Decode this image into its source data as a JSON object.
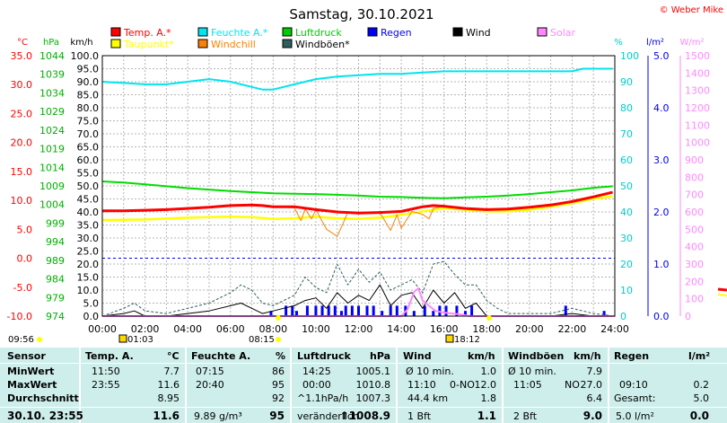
{
  "title": "Samstag, 30.10.2021",
  "copyright": "© Weber Mike",
  "legend": [
    {
      "label": "Temp. A.*",
      "color": "#ff0000"
    },
    {
      "label": "Feuchte A.*",
      "color": "#00e5ee"
    },
    {
      "label": "Luftdruck",
      "color": "#00cc00"
    },
    {
      "label": "Regen",
      "color": "#0000ff"
    },
    {
      "label": "Wind",
      "color": "#000000"
    },
    {
      "label": "Solar",
      "color": "#ff88ff"
    },
    {
      "label": "Taupunkt*",
      "color": "#ffff00"
    },
    {
      "label": "Windchill",
      "color": "#ff8000"
    },
    {
      "label": "Windböen*",
      "color": "#2f5f5f"
    }
  ],
  "axis_units": {
    "temp": "°C",
    "pressure": "hPa",
    "wind": "km/h",
    "humidity": "%",
    "rain": "l/m²",
    "solar": "W/m²"
  },
  "axis_ticks": {
    "temp": [
      "35.0",
      "30.0",
      "25.0",
      "20.0",
      "15.0",
      "10.0",
      "5.0",
      "0.0",
      "-5.0",
      "-10.0"
    ],
    "pressure": [
      "1044",
      "1039",
      "1034",
      "1029",
      "1024",
      "1019",
      "1014",
      "1009",
      "1004",
      "999",
      "994",
      "989",
      "984",
      "979",
      "974"
    ],
    "wind": [
      "100.0",
      "95.0",
      "90.0",
      "85.0",
      "80.0",
      "75.0",
      "70.0",
      "65.0",
      "60.0",
      "55.0",
      "50.0",
      "45.0",
      "40.0",
      "35.0",
      "30.0",
      "25.0",
      "20.0",
      "15.0",
      "10.0",
      "5.0",
      "0.0"
    ],
    "humidity": [
      "100",
      "90",
      "80",
      "70",
      "60",
      "50",
      "40",
      "30",
      "20",
      "10",
      "0"
    ],
    "rain": [
      "5.0",
      "4.0",
      "3.0",
      "2.0",
      "1.0",
      "0.0"
    ],
    "solar": [
      "1500",
      "1400",
      "1300",
      "1200",
      "1100",
      "1000",
      "900",
      "800",
      "700",
      "600",
      "500",
      "400",
      "300",
      "200",
      "100",
      "0"
    ],
    "time": [
      "00:00",
      "02:00",
      "04:00",
      "06:00",
      "08:00",
      "10:00",
      "12:00",
      "14:00",
      "16:00",
      "18:00",
      "20:00",
      "22:00",
      "24:00"
    ]
  },
  "sun_markers": {
    "sunrise": "08:15",
    "sunset": "18:12",
    "moonset": "01:03",
    "moon_extra": "09:56"
  },
  "chart_data": {
    "type": "line",
    "x_unit": "hours",
    "xlim": [
      0,
      24
    ],
    "series": [
      {
        "name": "Temp. A.*",
        "axis": "temp",
        "unit": "°C",
        "x": [
          0,
          1,
          2,
          3,
          4,
          5,
          6,
          7,
          7.5,
          8,
          9,
          10,
          11,
          12,
          13,
          14,
          15,
          15.5,
          16,
          17,
          18,
          19,
          20,
          21,
          22,
          23,
          23.9
        ],
        "y": [
          8.2,
          8.2,
          8.3,
          8.4,
          8.6,
          8.8,
          9.1,
          9.2,
          9.1,
          8.9,
          8.9,
          8.4,
          8.0,
          7.8,
          7.9,
          8.1,
          8.9,
          9.1,
          9.0,
          8.6,
          8.4,
          8.5,
          8.8,
          9.2,
          9.8,
          10.6,
          11.4
        ]
      },
      {
        "name": "Taupunkt*",
        "axis": "temp",
        "unit": "°C",
        "x": [
          0,
          2,
          4,
          6,
          7,
          8,
          9,
          10,
          11,
          12,
          13,
          14,
          15,
          16,
          17,
          18,
          19,
          20,
          21,
          22,
          23,
          23.9
        ],
        "y": [
          6.6,
          6.7,
          7.0,
          7.2,
          7.1,
          6.8,
          6.9,
          7.2,
          6.9,
          6.8,
          7.0,
          7.5,
          8.1,
          8.6,
          8.4,
          8.1,
          8.1,
          8.4,
          8.9,
          9.5,
          10.3,
          10.7
        ]
      },
      {
        "name": "Windchill",
        "axis": "temp",
        "unit": "°C",
        "x": [
          8,
          9,
          9.3,
          9.5,
          9.8,
          10,
          10.5,
          11,
          11.3,
          11.5,
          12,
          13,
          13.5,
          13.8,
          14,
          14.5,
          15,
          15.3,
          15.5,
          16
        ],
        "y": [
          8.9,
          8.7,
          6.5,
          8.5,
          6.8,
          8.4,
          5.0,
          3.8,
          6.2,
          8.0,
          7.8,
          7.9,
          4.8,
          7.5,
          5.2,
          8.1,
          7.6,
          6.8,
          8.6,
          9.0
        ]
      },
      {
        "name": "Feuchte A.*",
        "axis": "humidity",
        "unit": "%",
        "x": [
          0,
          1,
          2,
          3,
          4,
          5,
          6,
          7,
          7.5,
          8,
          9,
          10,
          11,
          12,
          13,
          14,
          15,
          16,
          17,
          18,
          19,
          20,
          21,
          22,
          22.5,
          23,
          23.9
        ],
        "y": [
          90,
          89.5,
          89,
          89,
          90,
          91,
          90,
          88,
          87,
          87,
          89,
          91,
          92,
          92.5,
          93,
          93,
          93.5,
          94,
          94,
          94,
          94,
          94,
          94,
          94,
          95,
          95,
          95
        ]
      },
      {
        "name": "Luftdruck",
        "axis": "pressure",
        "unit": "hPa",
        "x": [
          0,
          1,
          2,
          3,
          4,
          5,
          6,
          7,
          8,
          9,
          10,
          11,
          12,
          13,
          14,
          15,
          16,
          17,
          18,
          19,
          20,
          21,
          22,
          23,
          23.9
        ],
        "y": [
          1010.2,
          1009.9,
          1009.4,
          1008.9,
          1008.4,
          1008.0,
          1007.6,
          1007.3,
          1007.0,
          1006.9,
          1006.8,
          1006.6,
          1006.4,
          1006.1,
          1006.0,
          1005.8,
          1005.7,
          1005.9,
          1006.1,
          1006.4,
          1006.8,
          1007.3,
          1007.8,
          1008.5,
          1008.9
        ]
      },
      {
        "name": "Wind",
        "axis": "wind",
        "unit": "km/h",
        "x": [
          0,
          1,
          1.5,
          2,
          3,
          4,
          5,
          6,
          6.5,
          7,
          7.5,
          8,
          9,
          9.5,
          10,
          10.5,
          11,
          11.5,
          12,
          12.5,
          13,
          13.5,
          14,
          14.5,
          15,
          15.5,
          16,
          16.5,
          17,
          17.5,
          18,
          19,
          20,
          21,
          22,
          23,
          24
        ],
        "y": [
          0,
          1,
          2,
          0,
          0,
          1,
          2,
          4,
          5,
          3,
          1,
          2,
          4,
          6,
          7,
          3,
          9,
          5,
          8,
          6,
          12,
          4,
          8,
          9,
          3,
          10,
          5,
          9,
          3,
          5,
          0,
          0,
          0,
          0,
          1,
          0,
          0
        ]
      },
      {
        "name": "Windböen*",
        "axis": "wind",
        "unit": "km/h",
        "x": [
          0,
          1,
          1.5,
          2,
          3,
          4,
          5,
          6,
          6.5,
          7,
          7.5,
          8,
          9,
          9.5,
          10,
          10.5,
          11,
          11.5,
          12,
          12.5,
          13,
          13.5,
          14,
          14.5,
          15,
          15.5,
          16,
          16.5,
          17,
          17.5,
          18,
          18.5,
          19,
          20,
          21,
          22,
          23,
          24
        ],
        "y": [
          0,
          3,
          5,
          2,
          1,
          3,
          5,
          9,
          12,
          10,
          5,
          4,
          8,
          15,
          11,
          9,
          20,
          12,
          18,
          13,
          17,
          10,
          12,
          14,
          9,
          20,
          21,
          16,
          12,
          12,
          6,
          3,
          1,
          1,
          1,
          3,
          1,
          0
        ]
      },
      {
        "name": "Solar",
        "axis": "solar",
        "unit": "W/m²",
        "x": [
          0,
          14,
          14.3,
          14.6,
          14.8,
          15,
          15.3,
          15.6,
          16,
          16.4,
          16.8,
          17.2,
          24
        ],
        "y": [
          0,
          0,
          40,
          140,
          160,
          90,
          60,
          30,
          20,
          15,
          10,
          0,
          0
        ]
      }
    ],
    "rain_bars": {
      "axis": "rain",
      "unit": "l/m²",
      "x": [
        7.9,
        8.6,
        8.9,
        9.1,
        9.6,
        10.0,
        10.3,
        10.6,
        10.9,
        11.2,
        11.4,
        11.7,
        12.0,
        12.4,
        12.7,
        13.1,
        13.5,
        13.8,
        14.2,
        14.6,
        15.1,
        15.5,
        15.8,
        16.1,
        16.6,
        17.0,
        17.3,
        21.7,
        23.5
      ],
      "y": [
        0.1,
        0.2,
        0.2,
        0.1,
        0.2,
        0.2,
        0.2,
        0.2,
        0.2,
        0.1,
        0.2,
        0.2,
        0.2,
        0.2,
        0.2,
        0.1,
        0.2,
        0.2,
        0.2,
        0.1,
        0.2,
        0.1,
        0.2,
        0.2,
        0.2,
        0.1,
        0.2,
        0.2,
        0.1
      ]
    },
    "axes": {
      "temp": [
        -10,
        35
      ],
      "pressure": [
        974,
        1044
      ],
      "wind": [
        0,
        100
      ],
      "humidity": [
        0,
        100
      ],
      "rain": [
        0,
        5
      ],
      "solar": [
        0,
        1500
      ]
    }
  },
  "stats": {
    "headers": {
      "sensor": "Sensor",
      "temp": "Temp. A.",
      "temp_unit": "°C",
      "hum": "Feuchte A.",
      "hum_unit": "%",
      "press": "Luftdruck",
      "press_unit": "hPa",
      "wind": "Wind",
      "wind_unit": "km/h",
      "gust": "Windböen",
      "gust_unit": "km/h",
      "rain": "Regen",
      "rain_unit": "l/m²"
    },
    "rows": [
      {
        "label": "MinWert",
        "temp_time": "11:50",
        "temp_val": "7.7",
        "hum_time": "07:15",
        "hum_val": "86",
        "press_time": "14:25",
        "press_val": "1005.1",
        "wind_time": "Ø 10 min.",
        "wind_dir": "",
        "wind_val": "1.0",
        "gust_time": "Ø 10 min.",
        "gust_dir": "",
        "gust_val": "7.9",
        "rain_time": "",
        "rain_val": ""
      },
      {
        "label": "MaxWert",
        "temp_time": "23:55",
        "temp_val": "11.6",
        "hum_time": "20:40",
        "hum_val": "95",
        "press_time": "00:00",
        "press_val": "1010.8",
        "wind_time": "11:10",
        "wind_dir": "0-NO",
        "wind_val": "12.0",
        "gust_time": "11:05",
        "gust_dir": "NO",
        "gust_val": "27.0",
        "rain_time": "09:10",
        "rain_val": "0.2"
      },
      {
        "label": "Durchschnitt",
        "temp_time": "",
        "temp_val": "8.95",
        "hum_time": "",
        "hum_val": "92",
        "press_time": "^1.1hPa/h",
        "press_val": "1007.3",
        "wind_time": "44.4 km",
        "wind_dir": "",
        "wind_val": "1.8",
        "gust_time": "",
        "gust_dir": "",
        "gust_val": "6.4",
        "rain_time": "Gesamt:",
        "rain_val": "5.0"
      },
      {
        "label": "30.10. 23:55",
        "temp_time": "",
        "temp_val": "11.6",
        "hum_time": "9.89 g/m³",
        "hum_val": "95",
        "press_time": "veränderlich",
        "press_val": "↑1008.9",
        "wind_time": "1 Bft",
        "wind_dir": "",
        "wind_val": "1.1",
        "gust_time": "2 Bft",
        "gust_dir": "",
        "gust_val": "9.0",
        "rain_time": "5.0 l/m²",
        "rain_val": "0.0"
      }
    ]
  }
}
